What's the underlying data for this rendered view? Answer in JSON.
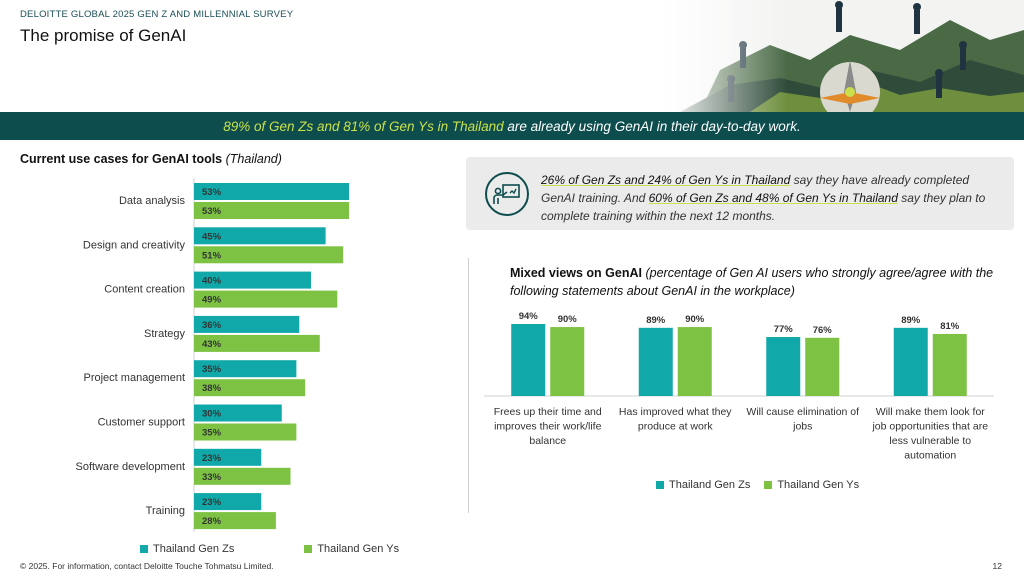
{
  "header": {
    "survey_label": "DELOITTE GLOBAL 2025 GEN Z AND MILLENNIAL SURVEY",
    "page_title": "The promise of GenAI"
  },
  "banner": {
    "highlight": "89% of Gen Zs and 81% of Gen Ys in Thailand",
    "rest": " are already using GenAI in their day-to-day work."
  },
  "callout": {
    "icon": "training-presentation-icon",
    "parts": [
      {
        "text": "26% of Gen Zs and 24% of Gen Ys in Thailand",
        "hl": true
      },
      {
        "text": " say they have already completed GenAI training. And ",
        "hl": false
      },
      {
        "text": "60% of Gen Zs and 48% of Gen Ys in Thailand",
        "hl": true
      },
      {
        "text": " say they plan to complete training within the next 12 months.",
        "hl": false
      }
    ]
  },
  "colors": {
    "gen_z": "#10a8a8",
    "gen_y": "#7dc242",
    "banner_bg": "#0e4d4e",
    "highlight": "#c9e04a"
  },
  "chart_data": [
    {
      "type": "bar",
      "orientation": "horizontal",
      "title": "Current use cases for GenAI tools",
      "title_note": "(Thailand)",
      "categories": [
        "Data analysis",
        "Design and creativity",
        "Content creation",
        "Strategy",
        "Project management",
        "Customer support",
        "Software development",
        "Training"
      ],
      "series": [
        {
          "name": "Thailand Gen Zs",
          "values": [
            53,
            45,
            40,
            36,
            35,
            30,
            23,
            23
          ],
          "color": "#10a8a8"
        },
        {
          "name": "Thailand Gen Ys",
          "values": [
            53,
            51,
            49,
            43,
            38,
            35,
            33,
            28
          ],
          "color": "#7dc242"
        }
      ],
      "value_suffix": "%",
      "xlim": [
        0,
        100
      ],
      "legend": "bottom"
    },
    {
      "type": "bar",
      "orientation": "vertical",
      "title": "Mixed views on GenAI",
      "title_note": "(percentage of Gen AI users who strongly agree/agree with the following statements about GenAI in the workplace)",
      "categories": [
        [
          "Frees up their time and",
          "improves their work/life",
          "balance"
        ],
        [
          "Has improved what they",
          "produce at work"
        ],
        [
          "Will cause elimination of",
          "jobs"
        ],
        [
          "Will make them look for",
          "job opportunities that are",
          "less vulnerable to",
          "automation"
        ]
      ],
      "series": [
        {
          "name": "Thailand Gen Zs",
          "values": [
            94,
            89,
            77,
            89
          ],
          "color": "#10a8a8"
        },
        {
          "name": "Thailand Gen Ys",
          "values": [
            90,
            90,
            76,
            81
          ],
          "color": "#7dc242"
        }
      ],
      "value_suffix": "%",
      "ylim": [
        0,
        100
      ],
      "legend": "bottom"
    }
  ],
  "footer": {
    "note": "© 2025. For information, contact Deloitte Touche Tohmatsu Limited.",
    "page_number": "12"
  }
}
